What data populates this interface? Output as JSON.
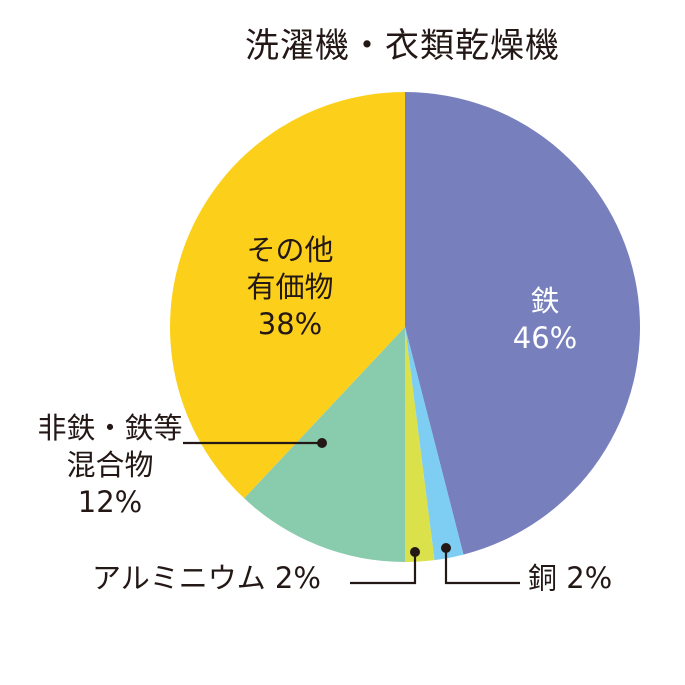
{
  "title": "洗濯機・衣類乾燥機",
  "chart_data": {
    "type": "pie",
    "title": "洗濯機・衣類乾燥機",
    "start_angle": "12 o'clock",
    "direction": "clockwise",
    "slices": [
      {
        "label": "鉄",
        "value": 46,
        "color": "#7780bd"
      },
      {
        "label": "銅",
        "value": 2,
        "color": "#7ecef4"
      },
      {
        "label": "アルミニウム",
        "value": 2,
        "color": "#dbe14a"
      },
      {
        "label": "非鉄・鉄等混合物",
        "value": 12,
        "color": "#88cbad"
      },
      {
        "label": "その他有価物",
        "value": 38,
        "color": "#fcd01a"
      }
    ]
  },
  "labels": {
    "iron": {
      "name": "鉄",
      "pct": "46%"
    },
    "copper": {
      "text": "銅 2%"
    },
    "aluminum": {
      "text": "アルミニウム 2%"
    },
    "mixed": {
      "line1": "非鉄・鉄等",
      "line2": "混合物",
      "pct": "12%"
    },
    "other": {
      "line1": "その他",
      "line2": "有価物",
      "pct": "38%"
    }
  }
}
